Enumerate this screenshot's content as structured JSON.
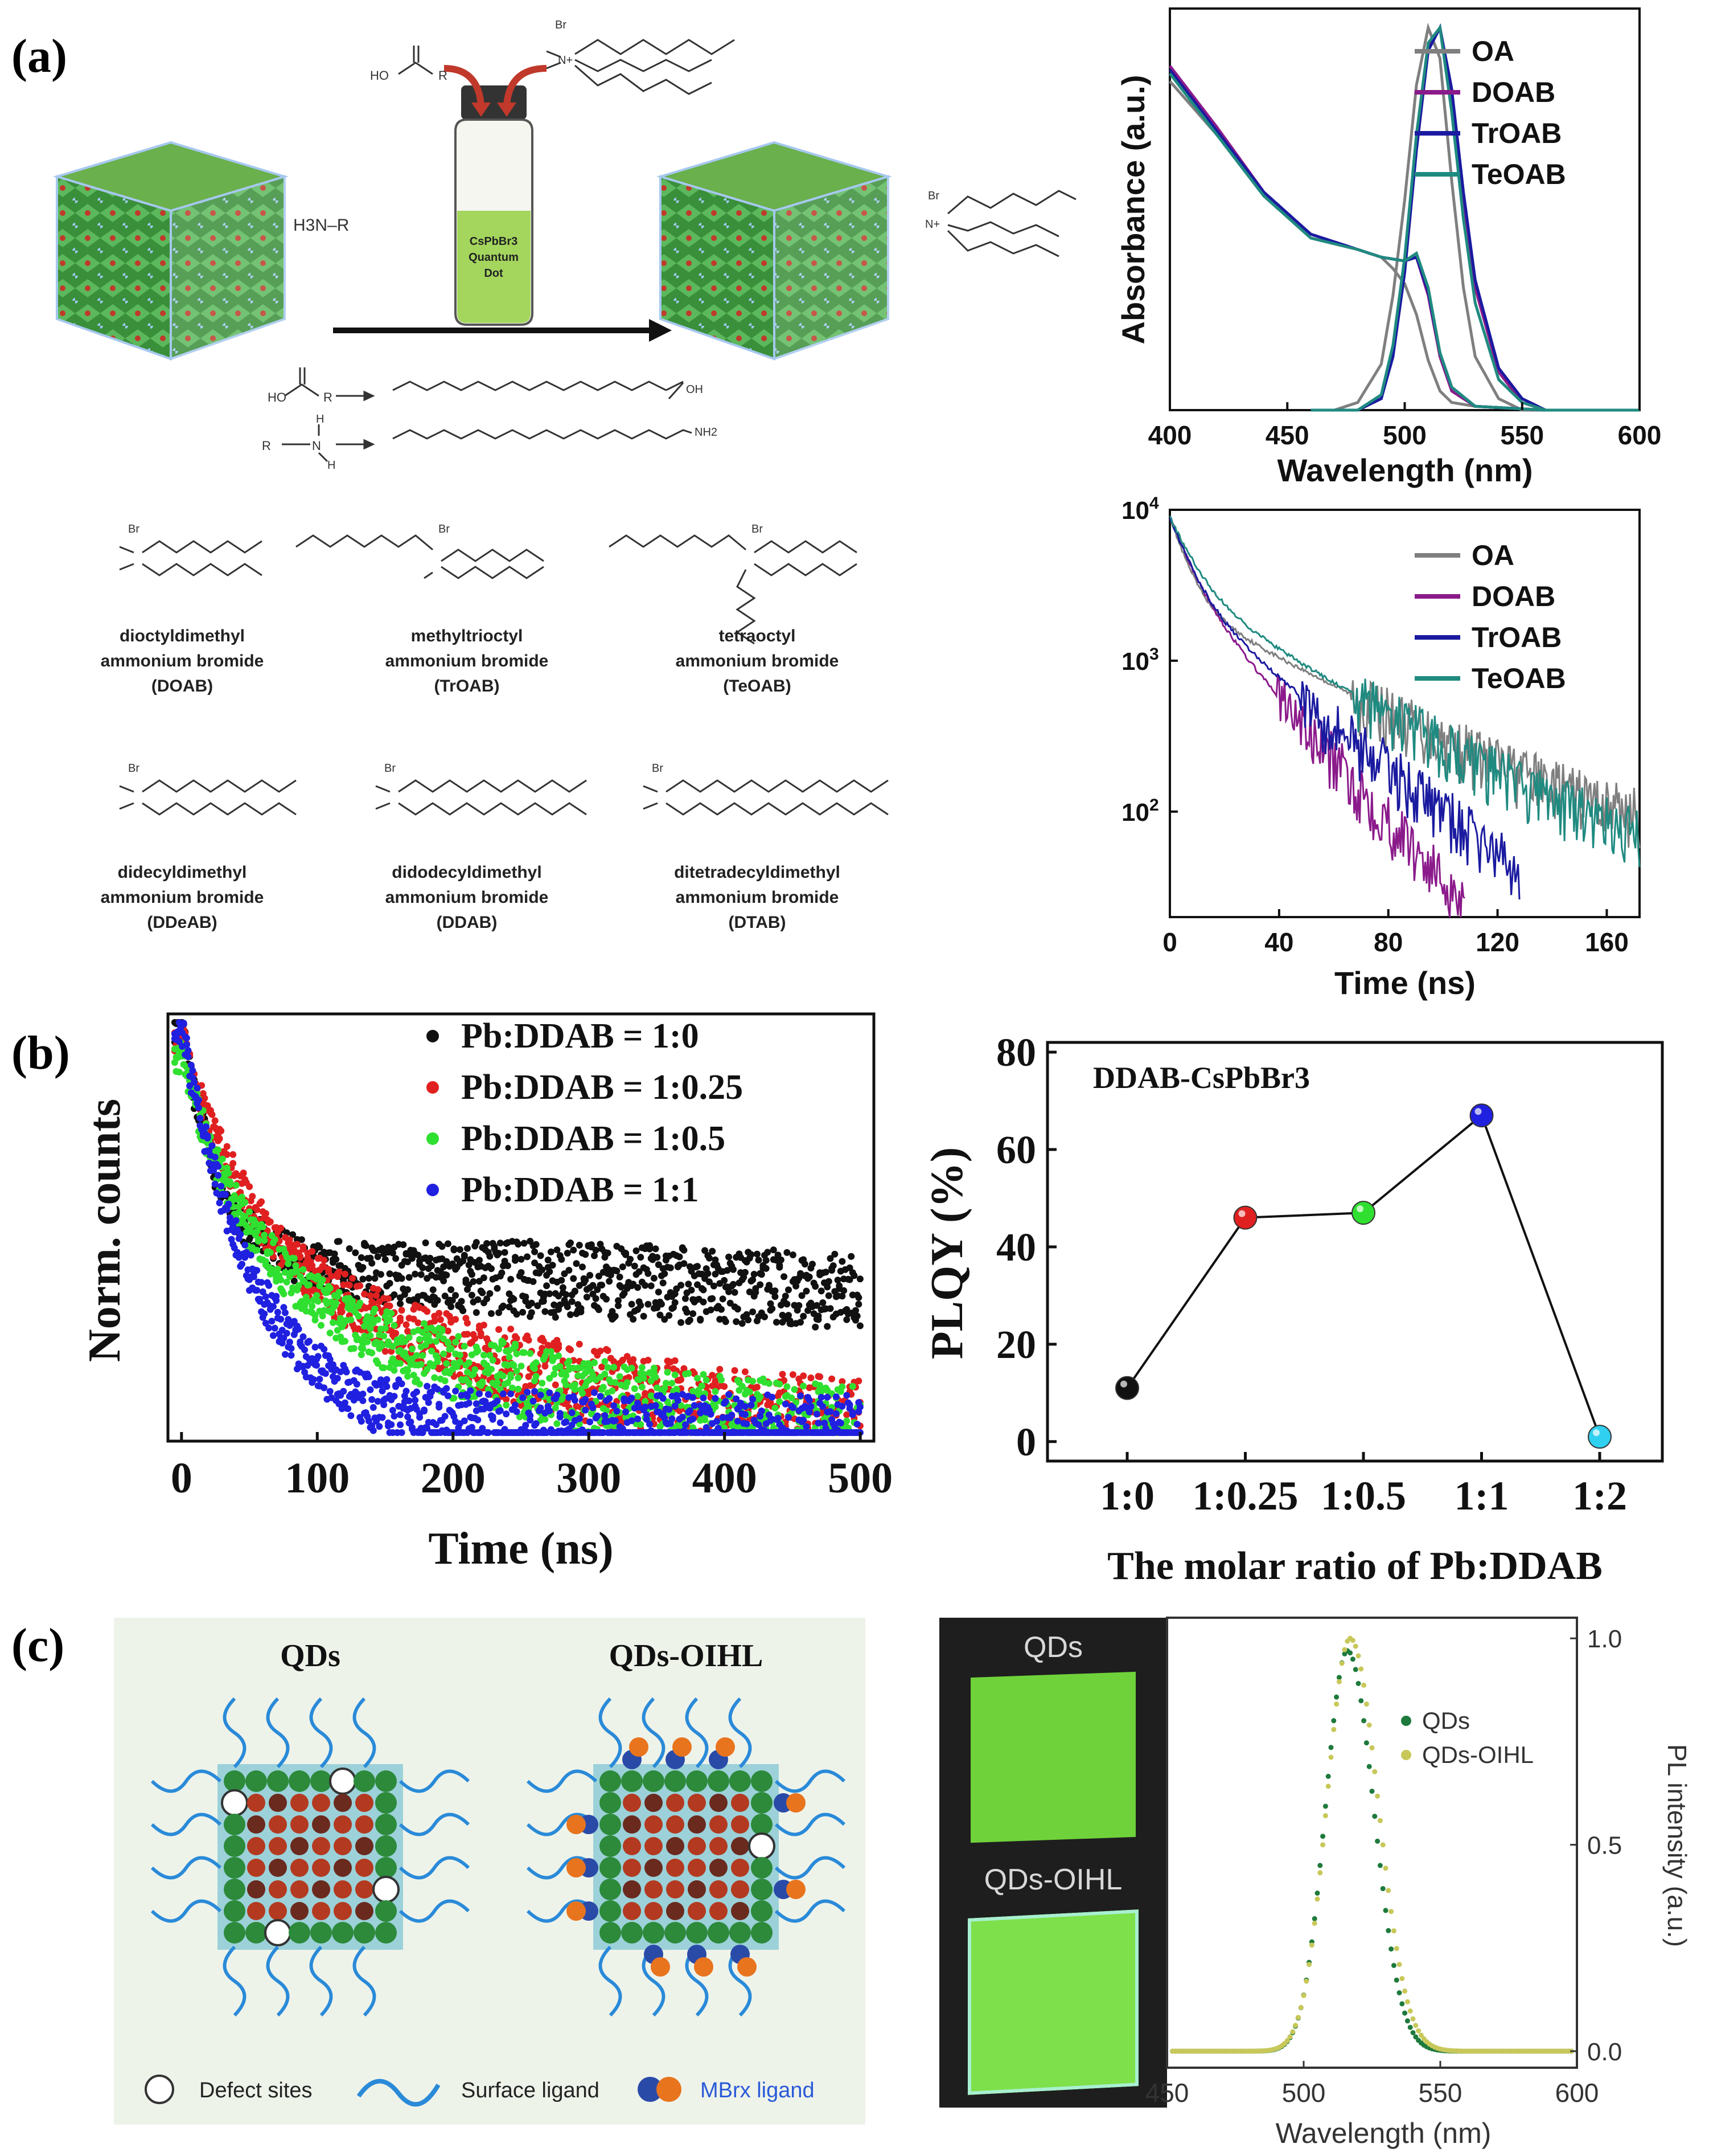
{
  "panel_labels": {
    "a": "(a)",
    "b": "(b)",
    "c": "(c)"
  },
  "scheme": {
    "vial_text": [
      "CsPbBr3",
      "Quantum",
      "Dot"
    ],
    "ammonium_label": "H3N–R",
    "acid_label": "HO  R",
    "amine_label": "R–N–H",
    "oleic_end": "OH",
    "oleylamine_end": "NH2",
    "bromide_label": "Br",
    "nitrogen_label": "N+",
    "ligands": [
      {
        "line1": "dioctyldimethyl",
        "line2": "ammonium bromide",
        "abbr": "(DOAB)"
      },
      {
        "line1": "methyltrioctyl",
        "line2": "ammonium bromide",
        "abbr": "(TrOAB)"
      },
      {
        "line1": "tetraoctyl",
        "line2": "ammonium bromide",
        "abbr": "(TeOAB)"
      },
      {
        "line1": "didecyldimethyl",
        "line2": "ammonium bromide",
        "abbr": "(DDeAB)"
      },
      {
        "line1": "didodecyldimethyl",
        "line2": "ammonium bromide",
        "abbr": "(DDAB)"
      },
      {
        "line1": "ditetradecyldimethyl",
        "line2": "ammonium bromide",
        "abbr": "(DTAB)"
      }
    ]
  },
  "colors": {
    "OA": "#7f7f7f",
    "DOAB": "#8b1a8b",
    "TrOAB": "#1a1aa0",
    "TeOAB": "#1f8a80",
    "black": "#111111",
    "red": "#e02020",
    "green": "#30e030",
    "blue": "#2020e0",
    "cyan": "#30d0f0",
    "qds": "#1e7a3c",
    "qdsoihl": "#c8c85a",
    "bg_c": "#eef3ea",
    "crystal_green": "#2c8a3a",
    "ligand_blue": "#2a8ad8"
  },
  "chart_data": [
    {
      "id": "absorbance",
      "type": "line",
      "title": "",
      "xlabel": "Wavelength (nm)",
      "ylabel": "Absorbance (a.u.)",
      "xlim": [
        400,
        600
      ],
      "ylim": [
        0,
        1.05
      ],
      "xticks": [
        "400",
        "450",
        "500",
        "550",
        "600"
      ],
      "legend": [
        "OA",
        "DOAB",
        "TrOAB",
        "TeOAB"
      ],
      "legend_position": "top-right",
      "series": [
        {
          "name": "OA",
          "absorbance_points": [
            [
              400,
              0.86
            ],
            [
              420,
              0.72
            ],
            [
              440,
              0.56
            ],
            [
              460,
              0.45
            ],
            [
              480,
              0.42
            ],
            [
              490,
              0.4
            ],
            [
              495,
              0.37
            ],
            [
              500,
              0.33
            ],
            [
              505,
              0.25
            ],
            [
              510,
              0.13
            ],
            [
              515,
              0.05
            ],
            [
              520,
              0.02
            ],
            [
              530,
              0.01
            ],
            [
              560,
              0.0
            ],
            [
              600,
              0.0
            ]
          ],
          "pl_points": [
            [
              470,
              0.0
            ],
            [
              480,
              0.02
            ],
            [
              490,
              0.12
            ],
            [
              495,
              0.3
            ],
            [
              500,
              0.55
            ],
            [
              505,
              0.85
            ],
            [
              510,
              1.0
            ],
            [
              515,
              0.92
            ],
            [
              520,
              0.6
            ],
            [
              525,
              0.32
            ],
            [
              530,
              0.14
            ],
            [
              540,
              0.03
            ],
            [
              550,
              0.0
            ],
            [
              600,
              0.0
            ]
          ]
        },
        {
          "name": "DOAB",
          "absorbance_points": [
            [
              400,
              0.9
            ],
            [
              420,
              0.74
            ],
            [
              440,
              0.57
            ],
            [
              460,
              0.46
            ],
            [
              480,
              0.42
            ],
            [
              490,
              0.4
            ],
            [
              500,
              0.39
            ],
            [
              505,
              0.4
            ],
            [
              510,
              0.3
            ],
            [
              515,
              0.14
            ],
            [
              520,
              0.05
            ],
            [
              530,
              0.01
            ],
            [
              560,
              0.0
            ],
            [
              600,
              0.0
            ]
          ],
          "pl_points": [
            [
              480,
              0.0
            ],
            [
              490,
              0.03
            ],
            [
              495,
              0.15
            ],
            [
              500,
              0.38
            ],
            [
              505,
              0.7
            ],
            [
              510,
              0.95
            ],
            [
              515,
              1.0
            ],
            [
              520,
              0.82
            ],
            [
              525,
              0.55
            ],
            [
              530,
              0.32
            ],
            [
              540,
              0.1
            ],
            [
              550,
              0.02
            ],
            [
              560,
              0.0
            ],
            [
              600,
              0.0
            ]
          ]
        },
        {
          "name": "TrOAB",
          "absorbance_points": [
            [
              400,
              0.89
            ],
            [
              420,
              0.73
            ],
            [
              440,
              0.57
            ],
            [
              460,
              0.46
            ],
            [
              480,
              0.42
            ],
            [
              490,
              0.4
            ],
            [
              500,
              0.39
            ],
            [
              505,
              0.4
            ],
            [
              510,
              0.31
            ],
            [
              515,
              0.15
            ],
            [
              520,
              0.06
            ],
            [
              530,
              0.01
            ],
            [
              560,
              0.0
            ],
            [
              600,
              0.0
            ]
          ],
          "pl_points": [
            [
              480,
              0.0
            ],
            [
              490,
              0.03
            ],
            [
              495,
              0.14
            ],
            [
              500,
              0.36
            ],
            [
              505,
              0.68
            ],
            [
              510,
              0.94
            ],
            [
              515,
              1.0
            ],
            [
              520,
              0.84
            ],
            [
              525,
              0.57
            ],
            [
              530,
              0.34
            ],
            [
              540,
              0.11
            ],
            [
              550,
              0.03
            ],
            [
              560,
              0.0
            ],
            [
              600,
              0.0
            ]
          ]
        },
        {
          "name": "TeOAB",
          "absorbance_points": [
            [
              400,
              0.88
            ],
            [
              420,
              0.72
            ],
            [
              440,
              0.56
            ],
            [
              460,
              0.45
            ],
            [
              480,
              0.42
            ],
            [
              490,
              0.4
            ],
            [
              500,
              0.39
            ],
            [
              505,
              0.41
            ],
            [
              510,
              0.32
            ],
            [
              515,
              0.15
            ],
            [
              520,
              0.06
            ],
            [
              530,
              0.01
            ],
            [
              560,
              0.0
            ],
            [
              600,
              0.0
            ]
          ],
          "pl_points": [
            [
              480,
              0.0
            ],
            [
              490,
              0.04
            ],
            [
              495,
              0.17
            ],
            [
              500,
              0.4
            ],
            [
              505,
              0.72
            ],
            [
              510,
              0.96
            ],
            [
              515,
              1.0
            ],
            [
              520,
              0.78
            ],
            [
              525,
              0.5
            ],
            [
              530,
              0.28
            ],
            [
              540,
              0.08
            ],
            [
              550,
              0.02
            ],
            [
              560,
              0.0
            ],
            [
              600,
              0.0
            ]
          ]
        }
      ]
    },
    {
      "id": "pl_decay_a",
      "type": "line",
      "xlabel": "Time (ns)",
      "ylabel": "",
      "yscale": "log",
      "xlim": [
        0,
        172
      ],
      "ylim": [
        20,
        10000
      ],
      "xticks": [
        "0",
        "40",
        "80",
        "120",
        "160"
      ],
      "yticks": [
        {
          "base": "10",
          "exp": "4",
          "value": 10000
        },
        {
          "base": "10",
          "exp": "3",
          "value": 1000
        },
        {
          "base": "10",
          "exp": "2",
          "value": 100
        }
      ],
      "legend": [
        "OA",
        "DOAB",
        "TrOAB",
        "TeOAB"
      ],
      "legend_position": "top-right",
      "series": [
        {
          "name": "OA",
          "tau1": 6,
          "tau2": 45,
          "frac": 0.73,
          "bg": 45,
          "end": 172
        },
        {
          "name": "DOAB",
          "tau1": 7,
          "tau2": 22,
          "frac": 0.62,
          "bg": 0,
          "end": 108
        },
        {
          "name": "TrOAB",
          "tau1": 7,
          "tau2": 30,
          "frac": 0.68,
          "bg": 0,
          "end": 128
        },
        {
          "name": "TeOAB",
          "tau1": 8,
          "tau2": 40,
          "frac": 0.66,
          "bg": 30,
          "end": 172
        }
      ]
    },
    {
      "id": "pl_decay_b",
      "type": "scatter",
      "xlabel": "Time (ns)",
      "ylabel": "Norm. counts",
      "xlim": [
        -10,
        510
      ],
      "ylim": [
        0,
        1
      ],
      "xticks": [
        "0",
        "100",
        "200",
        "300",
        "400",
        "500"
      ],
      "legend": [
        "Pb:DDAB = 1:0",
        "Pb:DDAB = 1:0.25",
        "Pb:DDAB = 1:0.5",
        "Pb:DDAB = 1:1"
      ],
      "legend_position": "top-right",
      "series": [
        {
          "name": "Pb:DDAB = 1:0",
          "floor": 0.41,
          "amp": 0.56,
          "tau": 28,
          "slope": 0.00012
        },
        {
          "name": "Pb:DDAB = 1:0.25",
          "floor": 0.0,
          "amp": 0.95,
          "tau": 45,
          "slope": 0.0,
          "tail_amp": 0.55,
          "tail_tau": 220
        },
        {
          "name": "Pb:DDAB = 1:0.5",
          "floor": 0.0,
          "amp": 0.95,
          "tau": 42,
          "slope": 0.0,
          "tail_amp": 0.5,
          "tail_tau": 200
        },
        {
          "name": "Pb:DDAB = 1:1",
          "floor": 0.0,
          "amp": 0.95,
          "tau": 55,
          "slope": 0.0,
          "tail_amp": 0.0,
          "tail_tau": 1
        }
      ]
    },
    {
      "id": "plqy",
      "type": "line",
      "title": "DDAB-CsPbBr3",
      "xlabel": "The molar ratio of Pb:DDAB",
      "ylabel": "PLQY (%)",
      "ylim": [
        -4,
        82
      ],
      "yticks": [
        "0",
        "20",
        "40",
        "60",
        "80"
      ],
      "categories": [
        "1:0",
        "1:0.25",
        "1:0.5",
        "1:1",
        "1:2"
      ],
      "values": [
        11,
        46,
        47,
        67,
        1
      ]
    },
    {
      "id": "pl_spectrum_c",
      "type": "scatter",
      "xlabel": "Wavelength (nm)",
      "ylabel": "PL intensity (a.u.)",
      "xlim": [
        450,
        600
      ],
      "ylim": [
        -0.04,
        1.05
      ],
      "xticks": [
        "450",
        "500",
        "550",
        "600"
      ],
      "yticks": [
        "0.0",
        "0.5",
        "1.0"
      ],
      "legend": [
        "QDs",
        "QDs-OIHL"
      ],
      "legend_position": "top-right",
      "series": [
        {
          "name": "QDs",
          "peak": 516,
          "fwhm": 19,
          "height": 0.97
        },
        {
          "name": "QDs-OIHL",
          "peak": 517,
          "fwhm": 20,
          "height": 1.0
        }
      ]
    }
  ],
  "diagram_c": {
    "labels": {
      "qds": "QDs",
      "qdsoihl": "QDs-OIHL"
    },
    "legend": {
      "defect": "Defect sites",
      "surface": "Surface ligand",
      "mbr": "MBrx ligand"
    }
  },
  "photos_c": {
    "top": "QDs",
    "bottom": "QDs-OIHL"
  }
}
